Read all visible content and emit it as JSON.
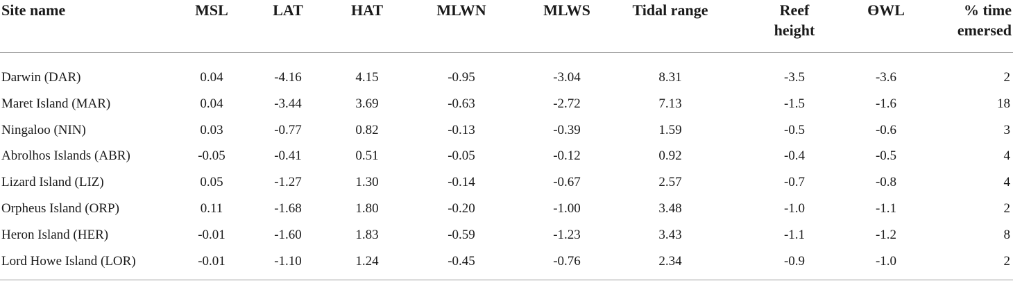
{
  "table": {
    "headers": [
      "Site name",
      "MSL",
      "LAT",
      "HAT",
      "MLWN",
      "MLWS",
      "Tidal range",
      "Reef\nheight",
      "ƟWL",
      "% time\nemersed"
    ],
    "rows": [
      [
        "Darwin (DAR)",
        "0.04",
        "-4.16",
        "4.15",
        "-0.95",
        "-3.04",
        "8.31",
        "-3.5",
        "-3.6",
        "2"
      ],
      [
        "Maret Island (MAR)",
        "0.04",
        "-3.44",
        "3.69",
        "-0.63",
        "-2.72",
        "7.13",
        "-1.5",
        "-1.6",
        "18"
      ],
      [
        "Ningaloo (NIN)",
        "0.03",
        "-0.77",
        "0.82",
        "-0.13",
        "-0.39",
        "1.59",
        "-0.5",
        "-0.6",
        "3"
      ],
      [
        "Abrolhos Islands (ABR)",
        "-0.05",
        "-0.41",
        "0.51",
        "-0.05",
        "-0.12",
        "0.92",
        "-0.4",
        "-0.5",
        "4"
      ],
      [
        "Lizard Island (LIZ)",
        "0.05",
        "-1.27",
        "1.30",
        "-0.14",
        "-0.67",
        "2.57",
        "-0.7",
        "-0.8",
        "4"
      ],
      [
        "Orpheus Island (ORP)",
        "0.11",
        "-1.68",
        "1.80",
        "-0.20",
        "-1.00",
        "3.48",
        "-1.0",
        "-1.1",
        "2"
      ],
      [
        "Heron Island (HER)",
        "-0.01",
        "-1.60",
        "1.83",
        "-0.59",
        "-1.23",
        "3.43",
        "-1.1",
        "-1.2",
        "8"
      ],
      [
        "Lord Howe Island (LOR)",
        "-0.01",
        "-1.10",
        "1.24",
        "-0.45",
        "-0.76",
        "2.34",
        "-0.9",
        "-1.0",
        "2"
      ]
    ]
  }
}
